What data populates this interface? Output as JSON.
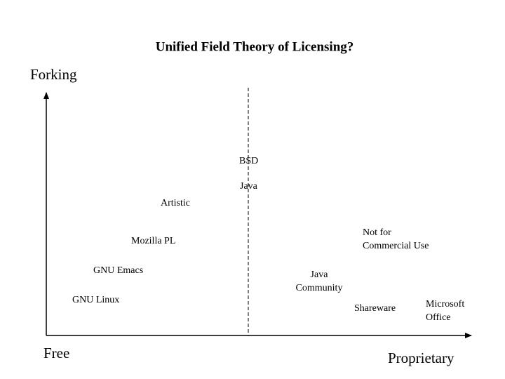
{
  "title": "Unified Field Theory of Licensing?",
  "axes": {
    "y_label": "Forking",
    "x_left_label": "Free",
    "x_right_label": "Proprietary"
  },
  "nodes": [
    {
      "lines": [
        "BSD"
      ]
    },
    {
      "lines": [
        "Java"
      ]
    },
    {
      "lines": [
        "Artistic"
      ]
    },
    {
      "lines": [
        "Mozilla PL"
      ]
    },
    {
      "lines": [
        "GNU Emacs"
      ]
    },
    {
      "lines": [
        "GNU Linux"
      ]
    },
    {
      "lines": [
        "Not for",
        "Commercial Use"
      ]
    },
    {
      "lines": [
        "Java",
        "Community"
      ]
    },
    {
      "lines": [
        "Shareware"
      ]
    },
    {
      "lines": [
        "Microsoft",
        "Office"
      ]
    }
  ]
}
